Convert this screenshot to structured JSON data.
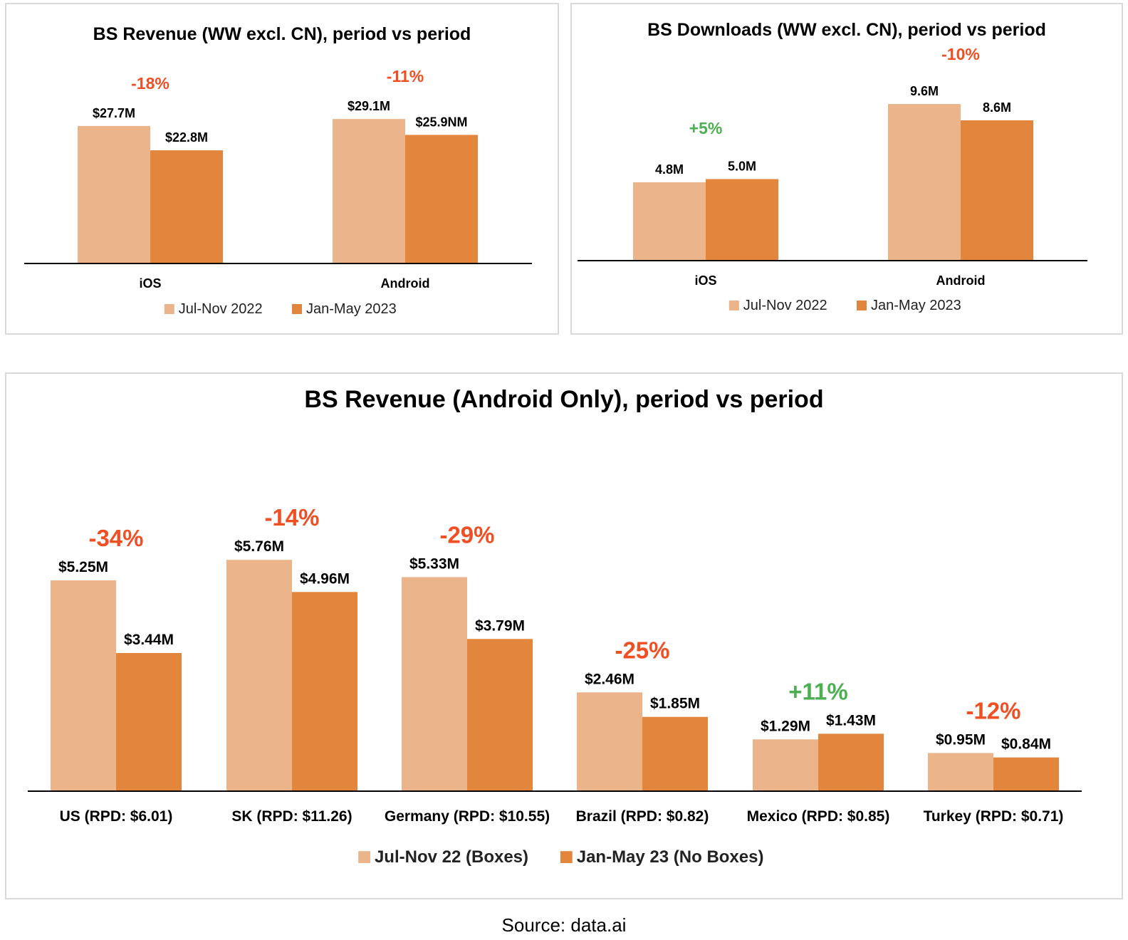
{
  "colors": {
    "period1": "#ecb48a",
    "period2": "#e2863d",
    "negative": "#f04e23",
    "positive": "#4caf50",
    "axis": "#000000"
  },
  "chart_data": [
    {
      "type": "bar",
      "title": "BS Revenue (WW excl. CN), period vs period",
      "categories": [
        "iOS",
        "Android"
      ],
      "series": [
        {
          "name": "Jul-Nov 2022",
          "values": [
            27.7,
            29.1
          ],
          "labels": [
            "$27.7M",
            "$29.1M"
          ]
        },
        {
          "name": "Jan-May 2023",
          "values": [
            22.8,
            25.9
          ],
          "labels": [
            "$22.8M",
            "$25.9NM"
          ]
        }
      ],
      "changes": [
        "-18%",
        "-11%"
      ],
      "ylim": [
        0,
        35
      ],
      "legend": "bottom"
    },
    {
      "type": "bar",
      "title": "BS Downloads (WW excl. CN), period vs period",
      "categories": [
        "iOS",
        "Android"
      ],
      "series": [
        {
          "name": "Jul-Nov 2022",
          "values": [
            4.8,
            9.6
          ],
          "labels": [
            "4.8M",
            "9.6M"
          ]
        },
        {
          "name": "Jan-May 2023",
          "values": [
            5.0,
            8.6
          ],
          "labels": [
            "5.0M",
            "8.6M"
          ]
        }
      ],
      "changes": [
        "+5%",
        "-10%"
      ],
      "ylim": [
        0,
        11
      ],
      "legend": "bottom"
    },
    {
      "type": "bar",
      "title": "BS Revenue (Android Only), period vs period",
      "categories": [
        "US (RPD: $6.01)",
        "SK (RPD: $11.26)",
        "Germany (RPD: $10.55)",
        "Brazil (RPD: $0.82)",
        "Mexico (RPD: $0.85)",
        "Turkey (RPD: $0.71)"
      ],
      "series": [
        {
          "name": "Jul-Nov 22 (Boxes)",
          "values": [
            5.25,
            5.76,
            5.33,
            2.46,
            1.29,
            0.95
          ],
          "labels": [
            "$5.25M",
            "$5.76M",
            "$5.33M",
            "$2.46M",
            "$1.29M",
            "$0.95M"
          ]
        },
        {
          "name": "Jan-May 23 (No Boxes)",
          "values": [
            3.44,
            4.96,
            3.79,
            1.85,
            1.43,
            0.84
          ],
          "labels": [
            "$3.44M",
            "$4.96M",
            "$3.79M",
            "$1.85M",
            "$1.43M",
            "$0.84M"
          ]
        }
      ],
      "changes": [
        "-34%",
        "-14%",
        "-29%",
        "-25%",
        "+11%",
        "-12%"
      ],
      "ylim": [
        0,
        7.2
      ],
      "legend": "bottom"
    }
  ],
  "source": "Source: data.ai"
}
